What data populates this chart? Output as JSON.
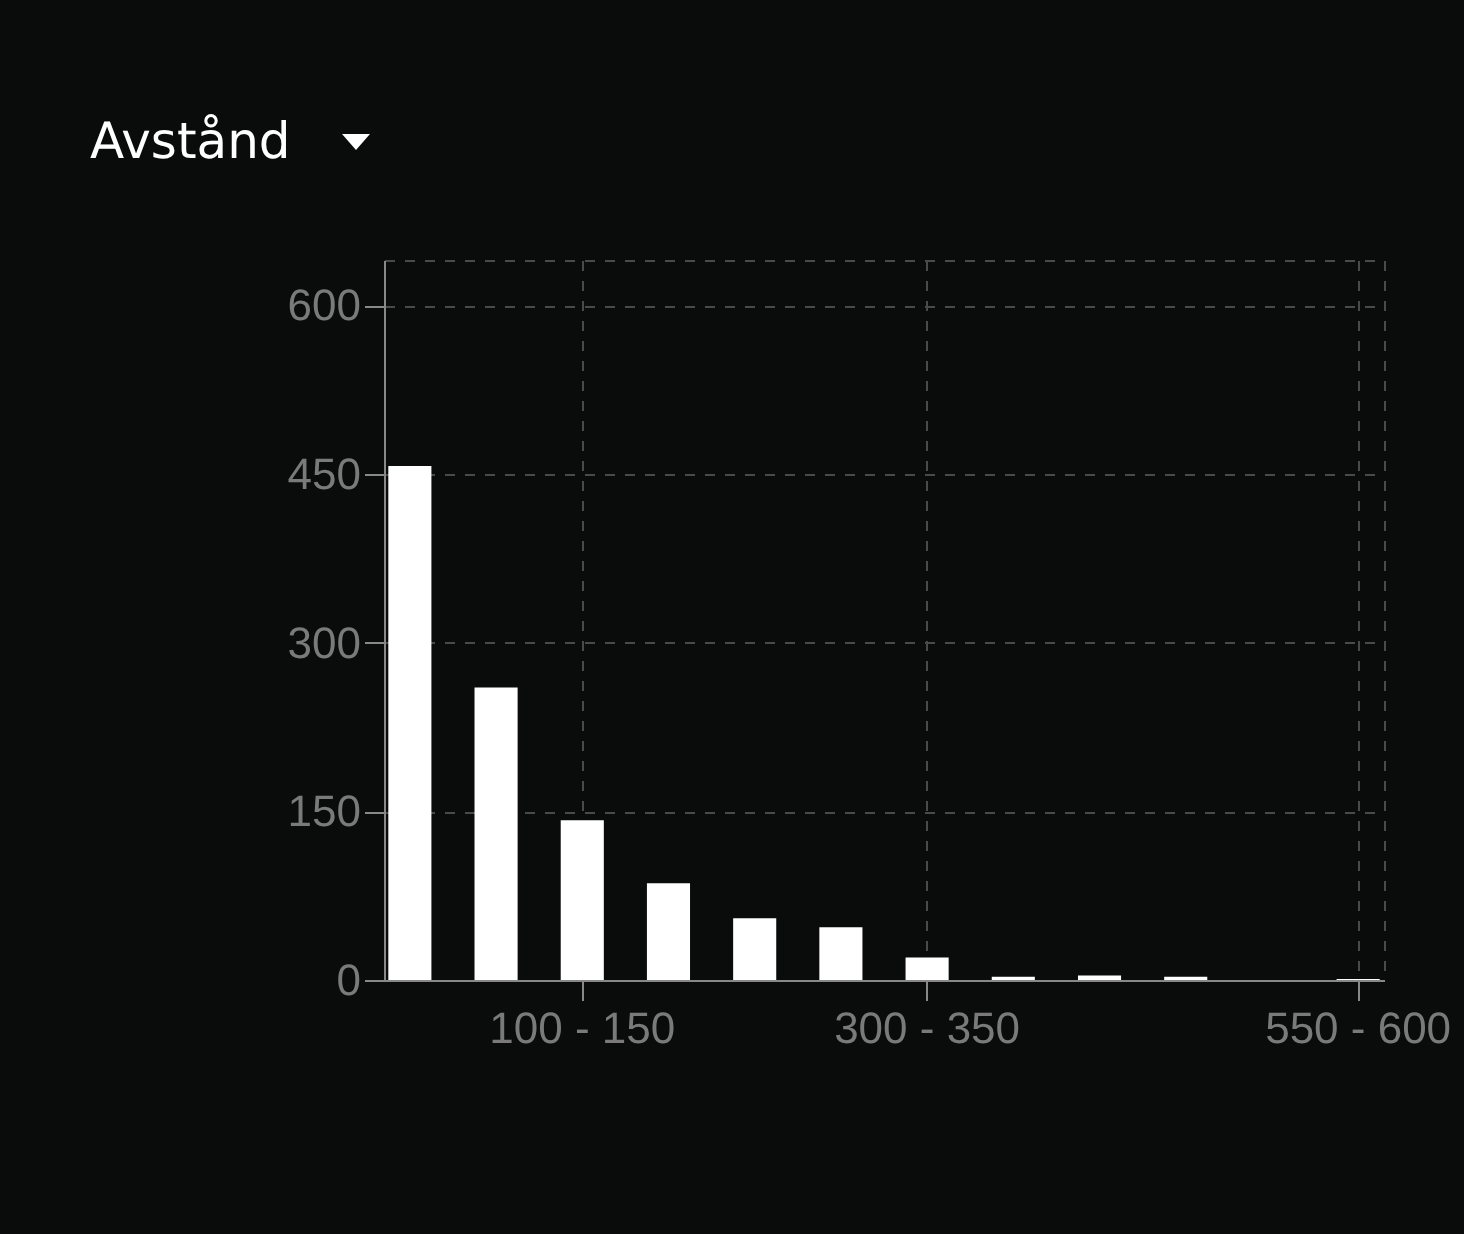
{
  "chart_data": {
    "type": "bar",
    "title": "Avstånd",
    "categories": [
      null,
      null,
      "100 - 150",
      null,
      null,
      null,
      "300 - 350",
      null,
      null,
      null,
      null,
      "550 - 600"
    ],
    "values": [
      457,
      260,
      142,
      86,
      55,
      47,
      20,
      3,
      4,
      3,
      0,
      1
    ],
    "color": "#ffffff",
    "ylim": [
      0,
      640
    ],
    "yticks": [
      0,
      150,
      300,
      450,
      600
    ],
    "grid": true
  }
}
